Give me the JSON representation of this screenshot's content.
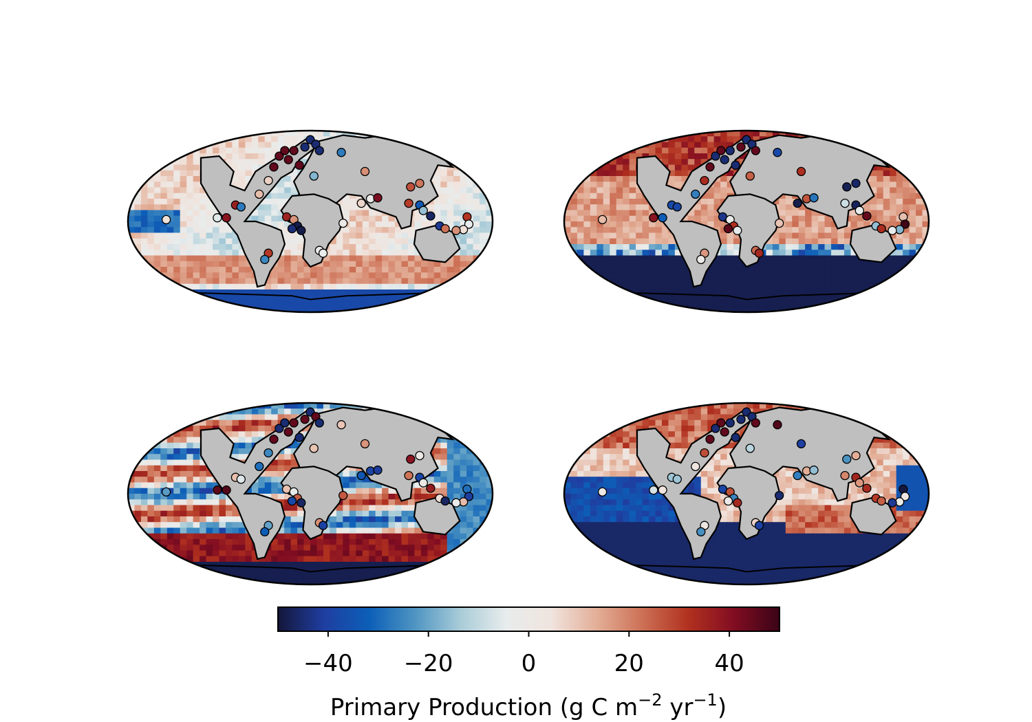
{
  "figure": {
    "panels": [
      {
        "id": "top-left",
        "pattern": "weak-mixed",
        "south_band": "blue-south-strip"
      },
      {
        "id": "top-right",
        "pattern": "positive-north-negative-south",
        "south_band": "dark-navy-southern-ocean"
      },
      {
        "id": "bottom-left",
        "pattern": "strong-banded-mixed",
        "south_band": "red-belt-then-navy"
      },
      {
        "id": "bottom-right",
        "pattern": "negative-pacific-positive-indian",
        "south_band": "dark-navy-southern-ocean"
      }
    ],
    "colors": {
      "land": "#bfbfbf",
      "outline": "#000000",
      "cmap_stops": [
        "#14163a",
        "#1f3ea0",
        "#0c5fb8",
        "#4f95c2",
        "#a9ccd8",
        "#e8ecec",
        "#f0e4de",
        "#e3ae97",
        "#cc7055",
        "#b1311f",
        "#820d22",
        "#3a0416"
      ]
    },
    "colorbar": {
      "vmin": -50,
      "vmax": 50,
      "ticks": [
        "−40",
        "−20",
        "0",
        "20",
        "40"
      ],
      "tick_values": [
        -40,
        -20,
        0,
        20,
        40
      ],
      "label_main": "Primary Production (g C m",
      "label_sup1": "−2",
      "label_mid": " yr",
      "label_sup2": "−1",
      "label_end": ")"
    }
  }
}
